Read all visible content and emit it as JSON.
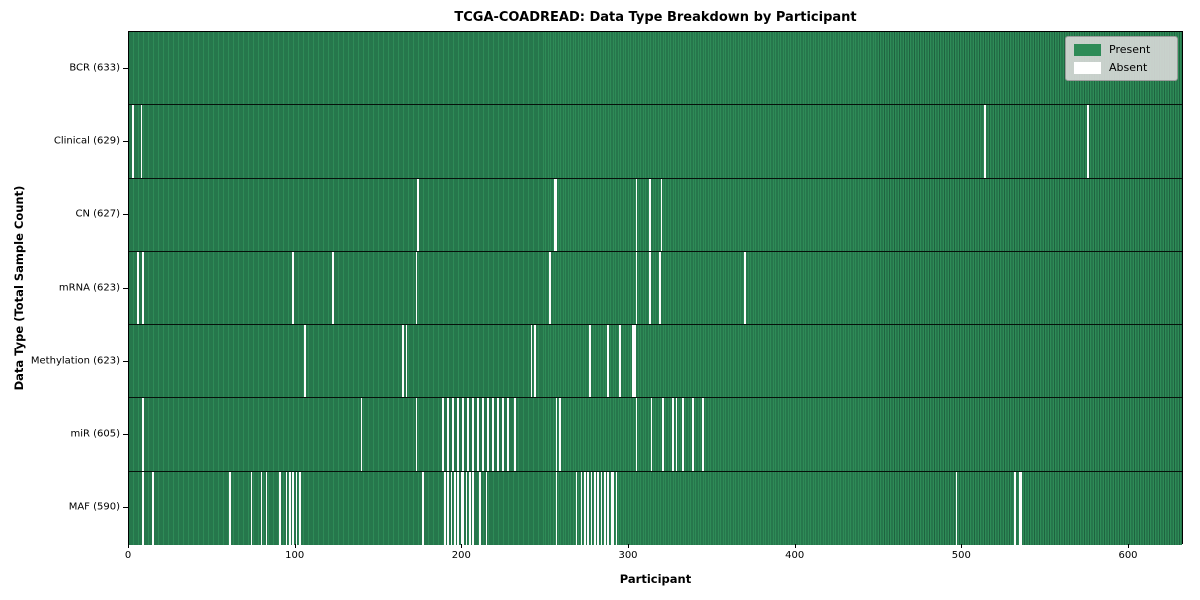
{
  "title": "TCGA-COADREAD: Data Type Breakdown by Participant",
  "xlabel": "Participant",
  "ylabel": "Data Type (Total Sample Count)",
  "legend": {
    "present_label": "Present",
    "absent_label": "Absent"
  },
  "colors": {
    "present": "#2e8b57",
    "present_edge": "#1f6340",
    "absent": "#ffffff",
    "legend_bg": "#d9d9d9",
    "border": "#000000"
  },
  "chart_data": {
    "type": "heatmap",
    "title": "TCGA-COADREAD: Data Type Breakdown by Participant",
    "xlabel": "Participant",
    "ylabel": "Data Type (Total Sample Count)",
    "x_range": [
      0,
      633
    ],
    "x_ticks": [
      0,
      100,
      200,
      300,
      400,
      500,
      600
    ],
    "n_participants": 633,
    "legend_entries": [
      "Present",
      "Absent"
    ],
    "legend_position": "upper right",
    "rows": [
      {
        "name": "BCR",
        "label": "BCR (633)",
        "present_count": 633,
        "absent": []
      },
      {
        "name": "Clinical",
        "label": "Clinical (629)",
        "present_count": 629,
        "absent": [
          2,
          7,
          513,
          575
        ]
      },
      {
        "name": "CN",
        "label": "CN (627)",
        "present_count": 627,
        "absent": [
          173,
          255,
          256,
          304,
          312,
          319
        ]
      },
      {
        "name": "mRNA",
        "label": "mRNA (623)",
        "present_count": 623,
        "absent": [
          5,
          8,
          98,
          122,
          172,
          252,
          304,
          312,
          318,
          369
        ]
      },
      {
        "name": "Methylation",
        "label": "Methylation (623)",
        "present_count": 623,
        "absent": [
          105,
          164,
          166,
          241,
          243,
          276,
          287,
          294,
          302,
          303
        ]
      },
      {
        "name": "miR",
        "label": "miR (605)",
        "present_count": 605,
        "absent": [
          8,
          139,
          172,
          188,
          191,
          194,
          197,
          200,
          203,
          206,
          209,
          212,
          215,
          218,
          221,
          224,
          227,
          231,
          256,
          258,
          304,
          313,
          320,
          326,
          328,
          332,
          338,
          344
        ]
      },
      {
        "name": "MAF",
        "label": "MAF (590)",
        "present_count": 590,
        "absent": [
          8,
          14,
          60,
          73,
          79,
          82,
          90,
          94,
          96,
          98,
          100,
          102,
          176,
          189,
          191,
          193,
          195,
          197,
          199,
          200,
          202,
          204,
          206,
          210,
          214,
          256,
          268,
          271,
          273,
          275,
          277,
          279,
          281,
          283,
          285,
          287,
          289,
          290,
          292,
          496,
          531,
          534,
          535
        ]
      }
    ]
  }
}
